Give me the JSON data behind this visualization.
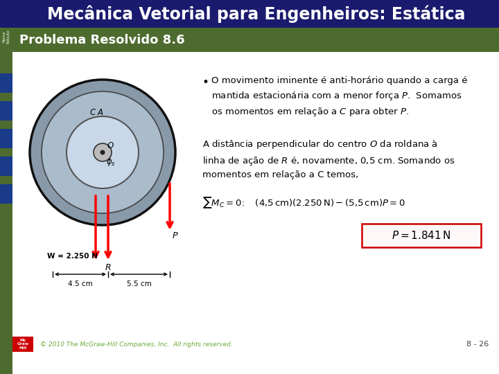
{
  "title": "Mecânica Vetorial para Engenheiros: Estática",
  "subtitle": "Problema Resolvido 8.6",
  "footer": "© 2010 The McGraw-Hill Companies, Inc.  All rights reserved.",
  "page": "8 - 26",
  "header_bg": "#4d6b2e",
  "title_bg": "#1a1a6e",
  "title_color": "#ffffff",
  "subtitle_color": "#ffffff",
  "sidebar_bg": "#4d6b2e",
  "sidebar_color": "#ffffff",
  "body_bg": "#ffffff",
  "footer_color": "#6aaa3a",
  "eq_box_color": "#cc0000",
  "nav_color": "#1a3a8a",
  "mcgraw_color": "#cc0000"
}
